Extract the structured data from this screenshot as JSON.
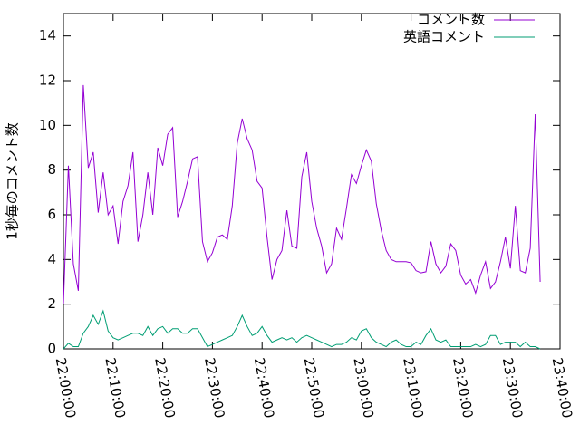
{
  "chart_data": {
    "type": "line",
    "ylabel": "1秒毎のコメント数",
    "x": [
      "22:00:00",
      "22:01:00",
      "22:02:00",
      "22:03:00",
      "22:04:00",
      "22:05:00",
      "22:06:00",
      "22:07:00",
      "22:08:00",
      "22:09:00",
      "22:10:00",
      "22:11:00",
      "22:12:00",
      "22:13:00",
      "22:14:00",
      "22:15:00",
      "22:16:00",
      "22:17:00",
      "22:18:00",
      "22:19:00",
      "22:20:00",
      "22:21:00",
      "22:22:00",
      "22:23:00",
      "22:24:00",
      "22:25:00",
      "22:26:00",
      "22:27:00",
      "22:28:00",
      "22:29:00",
      "22:30:00",
      "22:31:00",
      "22:32:00",
      "22:33:00",
      "22:34:00",
      "22:35:00",
      "22:36:00",
      "22:37:00",
      "22:38:00",
      "22:39:00",
      "22:40:00",
      "22:41:00",
      "22:42:00",
      "22:43:00",
      "22:44:00",
      "22:45:00",
      "22:46:00",
      "22:47:00",
      "22:48:00",
      "22:49:00",
      "22:50:00",
      "22:51:00",
      "22:52:00",
      "22:53:00",
      "22:54:00",
      "22:55:00",
      "22:56:00",
      "22:57:00",
      "22:58:00",
      "22:59:00",
      "23:00:00",
      "23:01:00",
      "23:02:00",
      "23:03:00",
      "23:04:00",
      "23:05:00",
      "23:06:00",
      "23:07:00",
      "23:08:00",
      "23:09:00",
      "23:10:00",
      "23:11:00",
      "23:12:00",
      "23:13:00",
      "23:14:00",
      "23:15:00",
      "23:16:00",
      "23:17:00",
      "23:18:00",
      "23:19:00",
      "23:20:00",
      "23:21:00",
      "23:22:00",
      "23:23:00",
      "23:24:00",
      "23:25:00",
      "23:26:00",
      "23:27:00",
      "23:28:00",
      "23:29:00",
      "23:30:00",
      "23:31:00",
      "23:32:00",
      "23:33:00",
      "23:34:00",
      "23:35:00",
      "23:36:00"
    ],
    "series": [
      {
        "name": "コメント数",
        "color": "#9400d3",
        "values": [
          2.0,
          8.2,
          3.8,
          2.6,
          11.8,
          8.1,
          8.8,
          6.1,
          7.9,
          6.0,
          6.4,
          4.7,
          6.6,
          7.3,
          8.8,
          4.8,
          6.0,
          7.9,
          6.0,
          9.0,
          8.2,
          9.6,
          9.9,
          5.9,
          6.6,
          7.5,
          8.5,
          8.6,
          4.8,
          3.9,
          4.3,
          5.0,
          5.1,
          4.9,
          6.4,
          9.2,
          10.3,
          9.4,
          8.9,
          7.5,
          7.2,
          5.0,
          3.1,
          4.0,
          4.4,
          6.2,
          4.6,
          4.5,
          7.7,
          8.8,
          6.6,
          5.4,
          4.6,
          3.4,
          3.8,
          5.4,
          4.9,
          6.3,
          7.8,
          7.4,
          8.2,
          8.9,
          8.4,
          6.5,
          5.3,
          4.4,
          4.0,
          3.9,
          3.9,
          3.9,
          3.85,
          3.5,
          3.4,
          3.45,
          4.8,
          3.8,
          3.4,
          3.7,
          4.7,
          4.4,
          3.3,
          2.9,
          3.1,
          2.5,
          3.3,
          3.9,
          2.7,
          3.0,
          3.9,
          5.0,
          3.6,
          6.4,
          3.5,
          3.4,
          4.5,
          10.5,
          3.0
        ]
      },
      {
        "name": "英語コメント",
        "color": "#009e73",
        "values": [
          0,
          0.25,
          0.1,
          0.1,
          0.7,
          1.0,
          1.5,
          1.1,
          1.7,
          0.8,
          0.5,
          0.4,
          0.5,
          0.6,
          0.7,
          0.7,
          0.6,
          1.0,
          0.6,
          0.9,
          1.0,
          0.7,
          0.9,
          0.9,
          0.7,
          0.7,
          0.9,
          0.9,
          0.5,
          0.1,
          0.2,
          0.3,
          0.4,
          0.5,
          0.6,
          1.0,
          1.5,
          1.0,
          0.6,
          0.7,
          1.0,
          0.6,
          0.3,
          0.4,
          0.5,
          0.4,
          0.5,
          0.3,
          0.5,
          0.6,
          0.5,
          0.4,
          0.3,
          0.2,
          0.1,
          0.2,
          0.2,
          0.3,
          0.5,
          0.4,
          0.8,
          0.9,
          0.5,
          0.3,
          0.2,
          0.1,
          0.3,
          0.4,
          0.2,
          0.1,
          0.1,
          0.3,
          0.2,
          0.6,
          0.9,
          0.4,
          0.3,
          0.4,
          0.1,
          0.1,
          0.1,
          0.1,
          0.1,
          0.2,
          0.1,
          0.2,
          0.6,
          0.6,
          0.2,
          0.3,
          0.3,
          0.3,
          0.1,
          0.3,
          0.1,
          0.1,
          0.0
        ]
      }
    ],
    "xlim": [
      "22:00:00",
      "23:40:00"
    ],
    "xticks": [
      "22:00:00",
      "22:10:00",
      "22:20:00",
      "22:30:00",
      "22:40:00",
      "22:50:00",
      "23:00:00",
      "23:10:00",
      "23:20:00",
      "23:30:00",
      "23:40:00"
    ],
    "ylim": [
      0,
      15
    ],
    "yticks": [
      0,
      2,
      4,
      6,
      8,
      10,
      12,
      14
    ],
    "legend": "top-right"
  }
}
